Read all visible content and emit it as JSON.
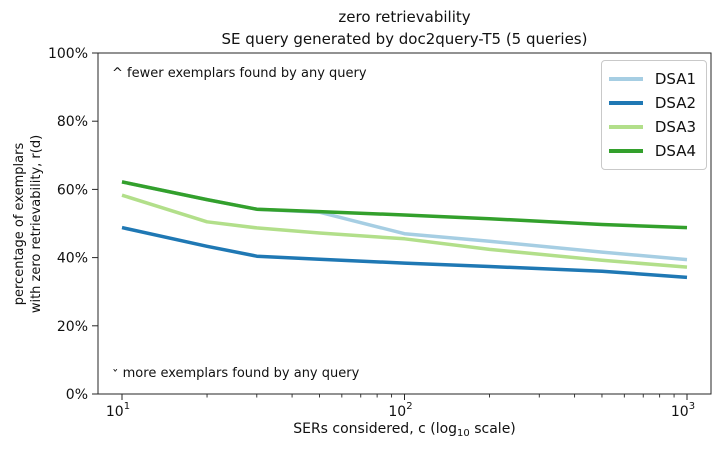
{
  "figure": {
    "title_line1": "zero retrievability",
    "title_line2": "SE query generated by doc2query-T5 (5 queries)",
    "annotations": {
      "top": {
        "caret": "^",
        "text": "fewer exemplars found by any query"
      },
      "bottom": {
        "caret": "ˇ",
        "text": "more exemplars found by any query"
      }
    }
  },
  "chart_data": {
    "type": "line",
    "title": "zero retrievability",
    "subtitle": "SE query generated by doc2query-T5 (5 queries)",
    "xlabel": {
      "prefix": "SERs considered, c (log",
      "sub": "10",
      "suffix": " scale)"
    },
    "ylabel_line1": "percentage of exemplars",
    "ylabel_line2": "with zero retrievability, r(d)",
    "xscale": "log10",
    "xlim": [
      8,
      1216
    ],
    "ylim": [
      0,
      100
    ],
    "grid": false,
    "line_width": 3.5,
    "x": [
      10,
      20,
      30,
      50,
      100,
      200,
      500,
      1000
    ],
    "x_major_ticks": [
      {
        "value": 10,
        "base": "10",
        "exp": "1"
      },
      {
        "value": 100,
        "base": "10",
        "exp": "2"
      },
      {
        "value": 1000,
        "base": "10",
        "exp": "3"
      }
    ],
    "y_ticks": [
      {
        "value": 0,
        "label": "0%"
      },
      {
        "value": 20,
        "label": "20%"
      },
      {
        "value": 40,
        "label": "40%"
      },
      {
        "value": 60,
        "label": "60%"
      },
      {
        "value": 80,
        "label": "80%"
      },
      {
        "value": 100,
        "label": "100%"
      }
    ],
    "series": [
      {
        "name": "DSA1",
        "color": "#a6cee3",
        "values": [
          62.2,
          57.0,
          54.2,
          53.3,
          47.0,
          44.8,
          41.6,
          39.4
        ]
      },
      {
        "name": "DSA2",
        "color": "#1f78b4",
        "values": [
          48.8,
          43.3,
          40.4,
          39.5,
          38.4,
          37.4,
          36.0,
          34.2
        ]
      },
      {
        "name": "DSA3",
        "color": "#b2df8a",
        "values": [
          58.3,
          50.5,
          48.7,
          47.2,
          45.5,
          42.4,
          39.2,
          37.2
        ]
      },
      {
        "name": "DSA4",
        "color": "#33a02c",
        "values": [
          62.2,
          57.0,
          54.2,
          53.5,
          52.5,
          51.4,
          49.7,
          48.8
        ]
      }
    ],
    "legend": {
      "position": "upper right",
      "entries": [
        "DSA1",
        "DSA2",
        "DSA3",
        "DSA4"
      ]
    }
  }
}
